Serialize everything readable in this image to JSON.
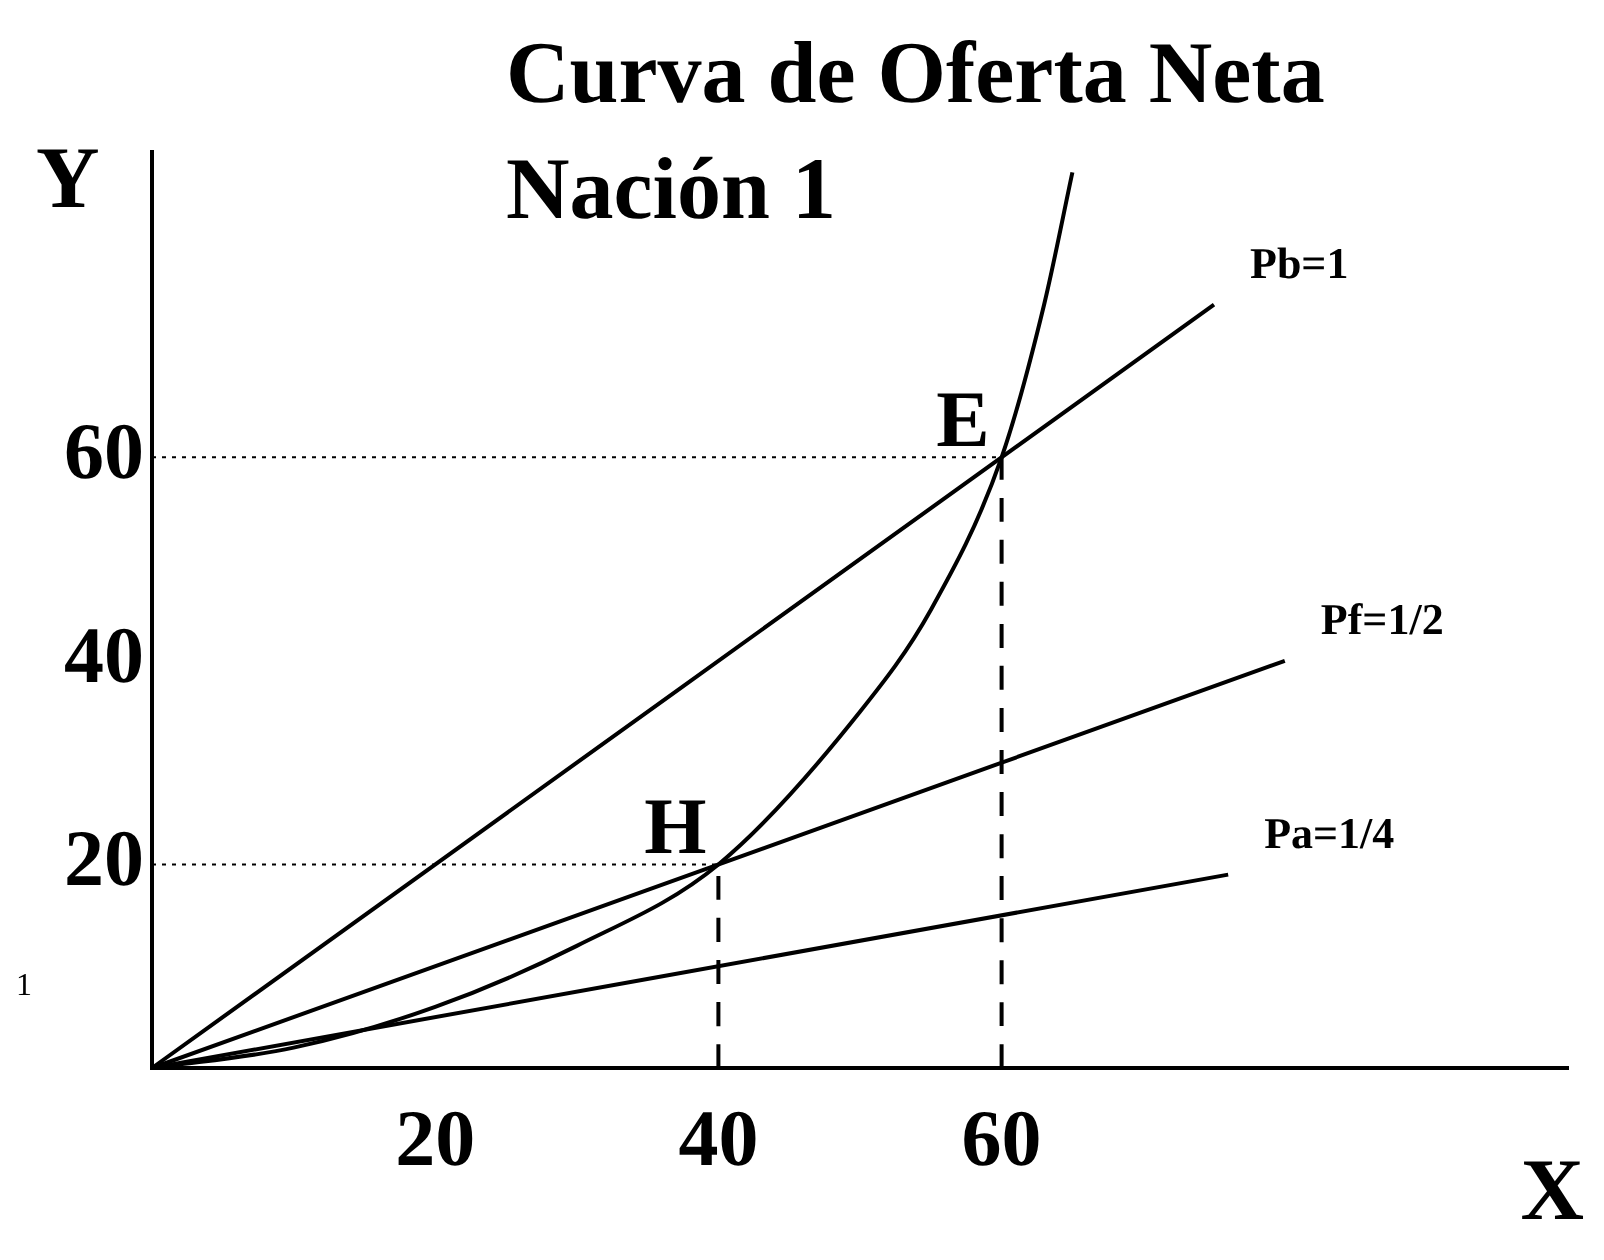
{
  "chart_data": {
    "type": "line",
    "title": "Curva de Oferta Neta Nación 1",
    "xlabel": "X",
    "ylabel": "Y",
    "xlim": [
      0,
      100
    ],
    "ylim": [
      0,
      90
    ],
    "xticks": [
      20,
      40,
      60
    ],
    "yticks": [
      20,
      40,
      60
    ],
    "grid": false,
    "legend": false,
    "marker": "none",
    "annotations": [
      {
        "text": "E",
        "x": 60,
        "y": 60
      },
      {
        "text": "H",
        "x": 40,
        "y": 20
      },
      "1"
    ],
    "series": [
      {
        "name": "Pb=1",
        "color": "#000000",
        "x": [
          0,
          75
        ],
        "values": [
          0,
          75
        ]
      },
      {
        "name": "Pf=1/2",
        "color": "#000000",
        "x": [
          0,
          80
        ],
        "values": [
          0,
          40
        ]
      },
      {
        "name": "Pa=1/4",
        "color": "#000000",
        "x": [
          0,
          76
        ],
        "values": [
          0,
          19
        ]
      },
      {
        "color": "#000000",
        "x": [
          0,
          10,
          20,
          30,
          40,
          50,
          55,
          60,
          63,
          65
        ],
        "values": [
          0,
          2,
          6,
          12,
          20,
          35,
          45,
          60,
          75,
          88
        ]
      },
      {
        "color": "#000000",
        "x": [
          0,
          60
        ],
        "values": [
          60,
          60
        ],
        "line_style": "dotted"
      },
      {
        "color": "#000000",
        "x": [
          0,
          40
        ],
        "values": [
          20,
          20
        ],
        "line_style": "dotted"
      },
      {
        "color": "#000000",
        "x": [
          40,
          40
        ],
        "values": [
          0,
          20
        ],
        "line_style": "dashed"
      },
      {
        "color": "#000000",
        "x": [
          60,
          60
        ],
        "values": [
          0,
          60
        ],
        "line_style": "dashed"
      }
    ]
  }
}
